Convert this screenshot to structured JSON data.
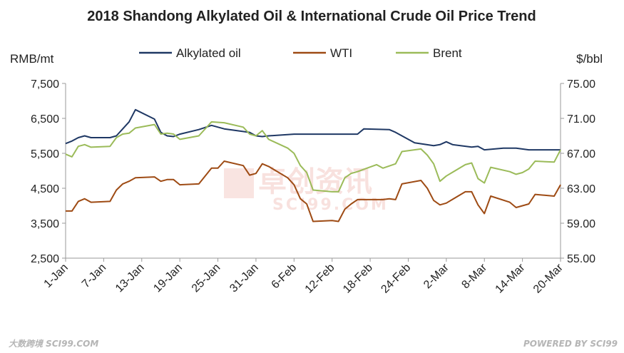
{
  "chart_data": {
    "type": "line",
    "title": "2018 Shandong Alkylated Oil & International Crude Oil Price Trend",
    "y_left_label": "RMB/mt",
    "y_right_label": "$/bbl",
    "y_left_ticks": [
      "7,500",
      "6,500",
      "5,500",
      "4,500",
      "3,500",
      "2,500"
    ],
    "y_right_ticks": [
      "75.00",
      "71.00",
      "67.00",
      "63.00",
      "59.00",
      "55.00"
    ],
    "y_left_range": [
      2500,
      7500
    ],
    "y_right_range": [
      55,
      75
    ],
    "x_tick_labels": [
      "1-Jan",
      "7-Jan",
      "13-Jan",
      "19-Jan",
      "25-Jan",
      "31-Jan",
      "6-Feb",
      "12-Feb",
      "18-Feb",
      "24-Feb",
      "2-Mar",
      "8-Mar",
      "14-Mar",
      "20-Mar"
    ],
    "x_range": [
      "2018-01-01",
      "2018-03-20"
    ],
    "legend_position": "top",
    "grid": false,
    "series": [
      {
        "name": "Alkylated oil",
        "axis": "left",
        "color": "#1f3864",
        "points": [
          [
            "2018-01-01",
            5780
          ],
          [
            "2018-01-02",
            5850
          ],
          [
            "2018-01-03",
            5950
          ],
          [
            "2018-01-04",
            6000
          ],
          [
            "2018-01-05",
            5950
          ],
          [
            "2018-01-08",
            5950
          ],
          [
            "2018-01-09",
            6000
          ],
          [
            "2018-01-10",
            6200
          ],
          [
            "2018-01-11",
            6400
          ],
          [
            "2018-01-12",
            6750
          ],
          [
            "2018-01-15",
            6480
          ],
          [
            "2018-01-16",
            6100
          ],
          [
            "2018-01-17",
            6000
          ],
          [
            "2018-01-18",
            5980
          ],
          [
            "2018-01-19",
            6050
          ],
          [
            "2018-01-22",
            6180
          ],
          [
            "2018-01-24",
            6300
          ],
          [
            "2018-01-26",
            6200
          ],
          [
            "2018-01-30",
            6100
          ],
          [
            "2018-01-31",
            6000
          ],
          [
            "2018-02-01",
            5980
          ],
          [
            "2018-02-02",
            6000
          ],
          [
            "2018-02-06",
            6050
          ],
          [
            "2018-02-07",
            6050
          ],
          [
            "2018-02-16",
            6050
          ],
          [
            "2018-02-17",
            6200
          ],
          [
            "2018-02-21",
            6180
          ],
          [
            "2018-02-22",
            6100
          ],
          [
            "2018-02-23",
            6000
          ],
          [
            "2018-02-25",
            5800
          ],
          [
            "2018-02-28",
            5720
          ],
          [
            "2018-03-01",
            5750
          ],
          [
            "2018-03-02",
            5830
          ],
          [
            "2018-03-03",
            5750
          ],
          [
            "2018-03-06",
            5680
          ],
          [
            "2018-03-07",
            5700
          ],
          [
            "2018-03-08",
            5600
          ],
          [
            "2018-03-11",
            5650
          ],
          [
            "2018-03-13",
            5650
          ],
          [
            "2018-03-15",
            5600
          ],
          [
            "2018-03-20",
            5600
          ]
        ]
      },
      {
        "name": "WTI",
        "axis": "right",
        "color": "#9e4b14",
        "points": [
          [
            "2018-01-01",
            60.4
          ],
          [
            "2018-01-02",
            60.4
          ],
          [
            "2018-01-03",
            61.5
          ],
          [
            "2018-01-04",
            61.8
          ],
          [
            "2018-01-05",
            61.4
          ],
          [
            "2018-01-08",
            61.5
          ],
          [
            "2018-01-09",
            62.8
          ],
          [
            "2018-01-10",
            63.5
          ],
          [
            "2018-01-11",
            63.8
          ],
          [
            "2018-01-12",
            64.2
          ],
          [
            "2018-01-15",
            64.3
          ],
          [
            "2018-01-16",
            63.8
          ],
          [
            "2018-01-17",
            64.0
          ],
          [
            "2018-01-18",
            64.0
          ],
          [
            "2018-01-19",
            63.4
          ],
          [
            "2018-01-22",
            63.5
          ],
          [
            "2018-01-24",
            65.3
          ],
          [
            "2018-01-25",
            65.3
          ],
          [
            "2018-01-26",
            66.1
          ],
          [
            "2018-01-29",
            65.6
          ],
          [
            "2018-01-30",
            64.5
          ],
          [
            "2018-01-31",
            64.7
          ],
          [
            "2018-02-01",
            65.8
          ],
          [
            "2018-02-02",
            65.5
          ],
          [
            "2018-02-05",
            64.2
          ],
          [
            "2018-02-06",
            63.4
          ],
          [
            "2018-02-07",
            61.8
          ],
          [
            "2018-02-08",
            61.2
          ],
          [
            "2018-02-09",
            59.2
          ],
          [
            "2018-02-12",
            59.3
          ],
          [
            "2018-02-13",
            59.2
          ],
          [
            "2018-02-14",
            60.6
          ],
          [
            "2018-02-15",
            61.2
          ],
          [
            "2018-02-16",
            61.7
          ],
          [
            "2018-02-20",
            61.7
          ],
          [
            "2018-02-21",
            61.8
          ],
          [
            "2018-02-22",
            61.7
          ],
          [
            "2018-02-23",
            63.5
          ],
          [
            "2018-02-26",
            63.9
          ],
          [
            "2018-02-27",
            63.0
          ],
          [
            "2018-02-28",
            61.6
          ],
          [
            "2018-03-01",
            61.1
          ],
          [
            "2018-03-02",
            61.3
          ],
          [
            "2018-03-05",
            62.6
          ],
          [
            "2018-03-06",
            62.6
          ],
          [
            "2018-03-07",
            61.1
          ],
          [
            "2018-03-08",
            60.1
          ],
          [
            "2018-03-09",
            62.1
          ],
          [
            "2018-03-12",
            61.4
          ],
          [
            "2018-03-13",
            60.8
          ],
          [
            "2018-03-14",
            61.0
          ],
          [
            "2018-03-15",
            61.2
          ],
          [
            "2018-03-16",
            62.3
          ],
          [
            "2018-03-19",
            62.1
          ],
          [
            "2018-03-20",
            63.4
          ]
        ]
      },
      {
        "name": "Brent",
        "axis": "right",
        "color": "#9bbb59",
        "points": [
          [
            "2018-01-01",
            66.9
          ],
          [
            "2018-01-02",
            66.6
          ],
          [
            "2018-01-03",
            67.8
          ],
          [
            "2018-01-04",
            68.0
          ],
          [
            "2018-01-05",
            67.7
          ],
          [
            "2018-01-08",
            67.8
          ],
          [
            "2018-01-09",
            68.8
          ],
          [
            "2018-01-10",
            69.2
          ],
          [
            "2018-01-11",
            69.3
          ],
          [
            "2018-01-12",
            69.9
          ],
          [
            "2018-01-15",
            70.3
          ],
          [
            "2018-01-16",
            69.2
          ],
          [
            "2018-01-17",
            69.3
          ],
          [
            "2018-01-18",
            69.2
          ],
          [
            "2018-01-19",
            68.6
          ],
          [
            "2018-01-22",
            69.0
          ],
          [
            "2018-01-24",
            70.6
          ],
          [
            "2018-01-26",
            70.5
          ],
          [
            "2018-01-29",
            70.0
          ],
          [
            "2018-01-30",
            69.2
          ],
          [
            "2018-01-31",
            69.0
          ],
          [
            "2018-02-01",
            69.6
          ],
          [
            "2018-02-02",
            68.6
          ],
          [
            "2018-02-05",
            67.6
          ],
          [
            "2018-02-06",
            67.0
          ],
          [
            "2018-02-07",
            65.6
          ],
          [
            "2018-02-08",
            64.8
          ],
          [
            "2018-02-09",
            62.8
          ],
          [
            "2018-02-12",
            62.6
          ],
          [
            "2018-02-13",
            62.6
          ],
          [
            "2018-02-14",
            64.2
          ],
          [
            "2018-02-15",
            64.7
          ],
          [
            "2018-02-16",
            64.9
          ],
          [
            "2018-02-19",
            65.7
          ],
          [
            "2018-02-20",
            65.3
          ],
          [
            "2018-02-22",
            65.8
          ],
          [
            "2018-02-23",
            67.2
          ],
          [
            "2018-02-26",
            67.5
          ],
          [
            "2018-02-27",
            66.8
          ],
          [
            "2018-02-28",
            65.8
          ],
          [
            "2018-03-01",
            63.8
          ],
          [
            "2018-03-02",
            64.4
          ],
          [
            "2018-03-05",
            65.7
          ],
          [
            "2018-03-06",
            65.9
          ],
          [
            "2018-03-07",
            64.1
          ],
          [
            "2018-03-08",
            63.6
          ],
          [
            "2018-03-09",
            65.4
          ],
          [
            "2018-03-12",
            64.9
          ],
          [
            "2018-03-13",
            64.6
          ],
          [
            "2018-03-14",
            64.8
          ],
          [
            "2018-03-15",
            65.2
          ],
          [
            "2018-03-16",
            66.1
          ],
          [
            "2018-03-19",
            66.0
          ],
          [
            "2018-03-20",
            67.4
          ]
        ]
      }
    ]
  },
  "watermark": {
    "main": "卓创资讯",
    "sub": "SCI99.COM"
  },
  "footer": {
    "left": "大数跨境 SCI99.COM",
    "right": "POWERED BY SCI99"
  }
}
